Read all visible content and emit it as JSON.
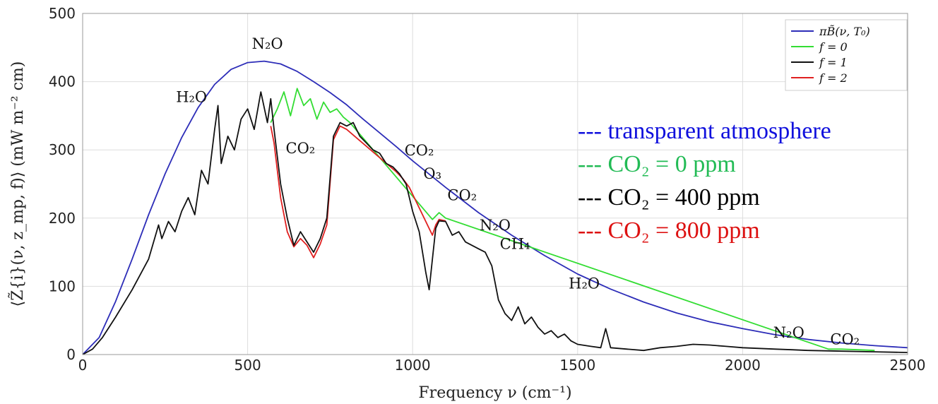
{
  "chart_data": {
    "type": "line",
    "title": "",
    "xlabel": "Frequency ν (cm⁻¹)",
    "ylabel": "⟨Z̃{i}(ν, z_mp, f)⟩ (mW m⁻² cm)",
    "xlim": [
      0,
      2500
    ],
    "ylim": [
      0,
      500
    ],
    "xticks": [
      0,
      500,
      1000,
      1500,
      2000,
      2500
    ],
    "yticks": [
      0,
      100,
      200,
      300,
      400,
      500
    ],
    "grid": true,
    "legend_position": "top-right",
    "series": [
      {
        "name": "πB̃(ν, T₀)",
        "color": "#2d2db8",
        "x": [
          0,
          50,
          100,
          150,
          200,
          250,
          300,
          350,
          400,
          450,
          500,
          550,
          600,
          650,
          700,
          750,
          800,
          850,
          900,
          950,
          1000,
          1100,
          1200,
          1300,
          1400,
          1500,
          1600,
          1700,
          1800,
          1900,
          2000,
          2100,
          2200,
          2300,
          2400,
          2500
        ],
        "y": [
          0,
          25,
          78,
          140,
          205,
          265,
          318,
          362,
          396,
          418,
          428,
          430,
          426,
          415,
          400,
          384,
          366,
          345,
          325,
          305,
          284,
          245,
          208,
          175,
          145,
          118,
          96,
          77,
          61,
          48,
          38,
          29,
          22,
          17,
          13,
          10
        ]
      },
      {
        "name": "f = 0",
        "color": "#33dd33",
        "x": [
          570,
          590,
          610,
          630,
          650,
          670,
          690,
          710,
          730,
          750,
          770,
          790,
          810,
          1060,
          1080,
          1100,
          2260,
          2300,
          2350,
          2400
        ],
        "y": [
          340,
          360,
          385,
          350,
          390,
          365,
          375,
          345,
          370,
          355,
          360,
          348,
          340,
          198,
          208,
          200,
          8,
          8,
          7,
          6
        ]
      },
      {
        "name": "f = 1",
        "color": "#111111",
        "x": [
          0,
          30,
          60,
          100,
          150,
          200,
          230,
          240,
          260,
          280,
          300,
          320,
          340,
          360,
          380,
          400,
          410,
          420,
          440,
          460,
          480,
          500,
          520,
          540,
          560,
          570,
          580,
          600,
          620,
          640,
          660,
          680,
          700,
          720,
          740,
          760,
          780,
          800,
          820,
          840,
          860,
          880,
          900,
          920,
          940,
          960,
          980,
          1000,
          1020,
          1040,
          1050,
          1060,
          1070,
          1080,
          1100,
          1120,
          1140,
          1160,
          1180,
          1200,
          1220,
          1240,
          1260,
          1280,
          1300,
          1320,
          1340,
          1360,
          1380,
          1400,
          1420,
          1440,
          1460,
          1480,
          1500,
          1540,
          1570,
          1585,
          1600,
          1650,
          1700,
          1750,
          1800,
          1850,
          1900,
          1950,
          2000,
          2050,
          2100,
          2150,
          2200,
          2300,
          2400,
          2500
        ],
        "y": [
          0,
          8,
          25,
          55,
          95,
          140,
          190,
          170,
          195,
          180,
          210,
          230,
          205,
          270,
          250,
          330,
          365,
          280,
          320,
          300,
          345,
          360,
          330,
          385,
          340,
          375,
          330,
          250,
          200,
          160,
          180,
          165,
          150,
          170,
          200,
          320,
          340,
          335,
          340,
          320,
          310,
          300,
          295,
          280,
          275,
          265,
          250,
          210,
          180,
          120,
          95,
          140,
          185,
          196,
          195,
          175,
          180,
          165,
          160,
          155,
          150,
          130,
          80,
          60,
          50,
          70,
          45,
          55,
          40,
          30,
          35,
          25,
          30,
          20,
          15,
          12,
          10,
          38,
          10,
          8,
          6,
          10,
          12,
          15,
          14,
          12,
          10,
          9,
          8,
          7,
          6,
          5,
          4,
          3
        ]
      },
      {
        "name": "f = 2",
        "color": "#e02020",
        "x": [
          570,
          580,
          600,
          620,
          640,
          660,
          680,
          700,
          720,
          740,
          760,
          780,
          800,
          950,
          970,
          990,
          1060,
          1070,
          1080,
          1100
        ],
        "y": [
          335,
          310,
          230,
          180,
          158,
          170,
          160,
          142,
          162,
          190,
          315,
          335,
          330,
          268,
          258,
          245,
          175,
          190,
          198,
          196
        ]
      }
    ],
    "annotations": [
      {
        "text": "N₂O",
        "x": 560,
        "y": 448
      },
      {
        "text": "H₂O",
        "x": 330,
        "y": 370
      },
      {
        "text": "CO₂",
        "x": 660,
        "y": 295
      },
      {
        "text": "CO₂",
        "x": 1020,
        "y": 292
      },
      {
        "text": "O₃",
        "x": 1060,
        "y": 258
      },
      {
        "text": "CO₂",
        "x": 1150,
        "y": 226
      },
      {
        "text": "N₂O",
        "x": 1250,
        "y": 182
      },
      {
        "text": "CH₄",
        "x": 1310,
        "y": 155
      },
      {
        "text": "H₂O",
        "x": 1520,
        "y": 97
      },
      {
        "text": "N₂O",
        "x": 2140,
        "y": 25
      },
      {
        "text": "CO₂",
        "x": 2310,
        "y": 15
      }
    ],
    "big_legend": [
      {
        "text": "--- transparent atmosphere",
        "color": "#1010dd"
      },
      {
        "text": "--- CO₂ = 0 ppm",
        "color": "#22bb55"
      },
      {
        "text": "--- CO₂ = 400 ppm",
        "color": "#000000"
      },
      {
        "text": "--- CO₂ = 800 ppm",
        "color": "#dd1111"
      }
    ]
  }
}
